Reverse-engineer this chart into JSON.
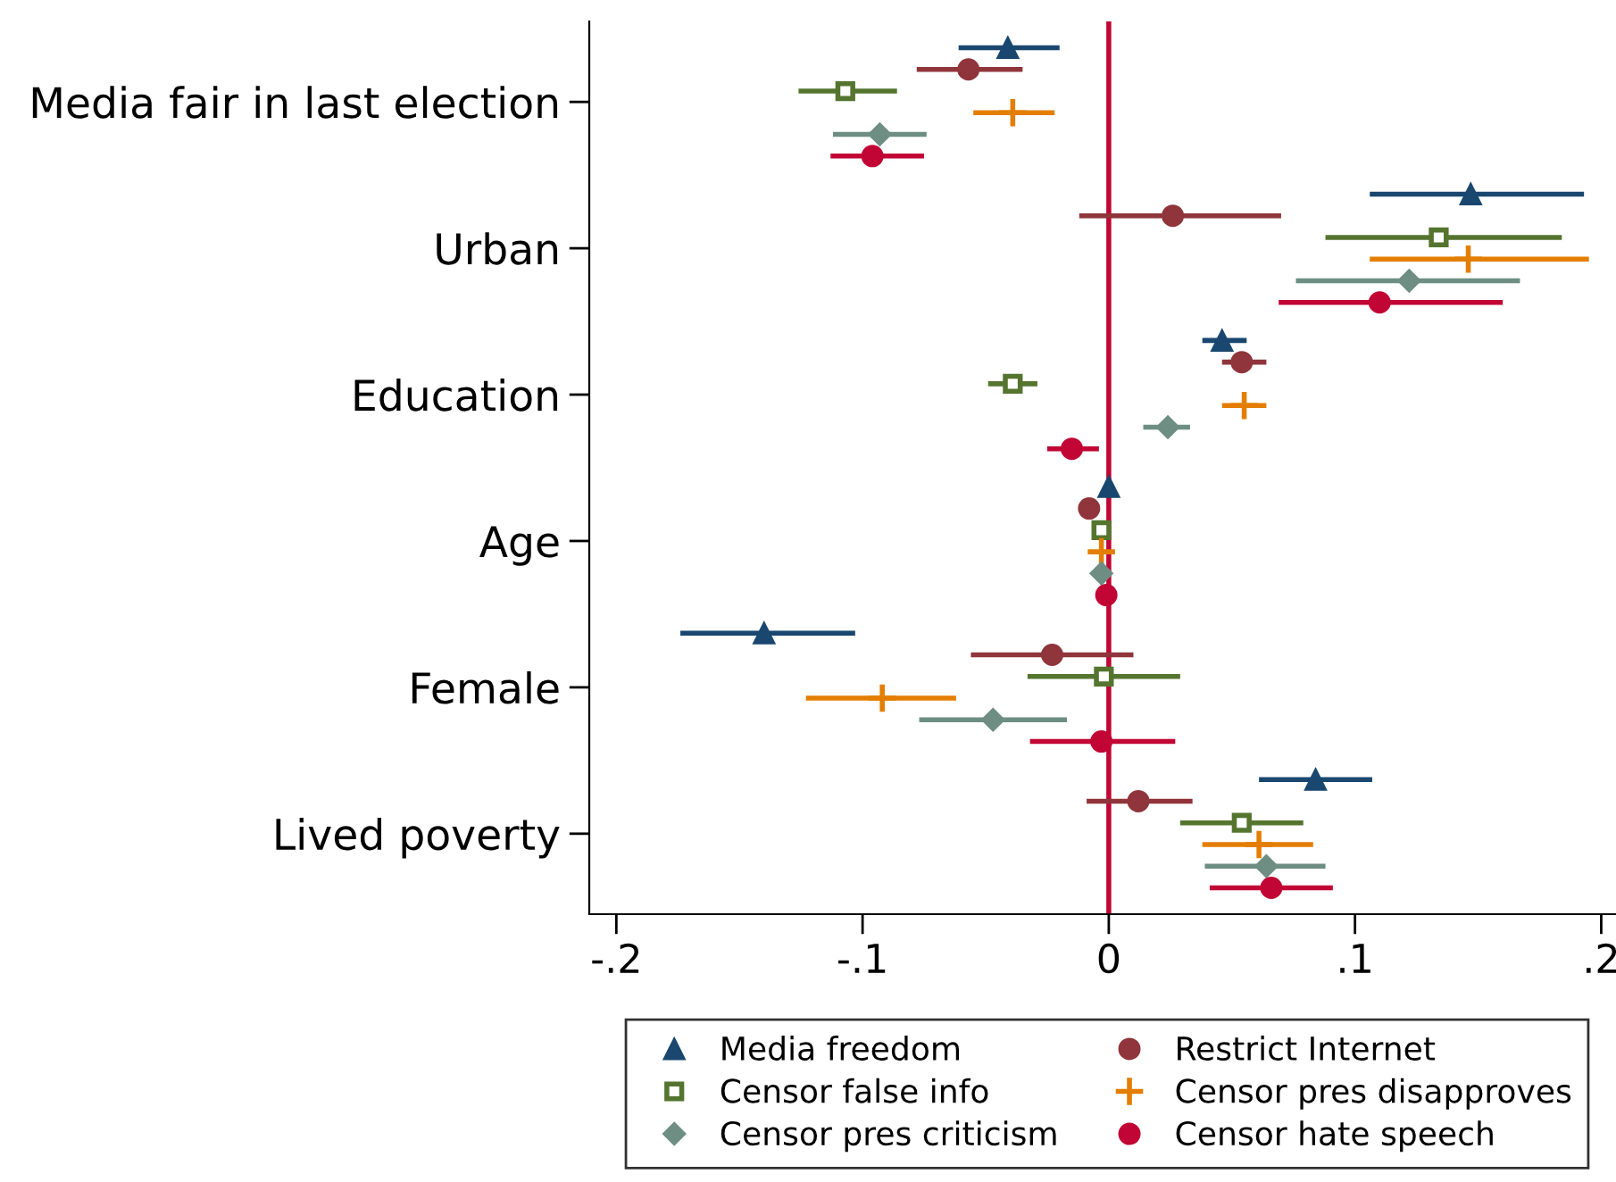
{
  "chart_data": {
    "type": "scatter",
    "orientation": "horizontal",
    "categories": [
      "Media fair in last election",
      "Urban",
      "Education",
      "Age",
      "Female",
      "Lived poverty"
    ],
    "xlim": [
      -0.211,
      0.206
    ],
    "xticks": [
      {
        "value": -0.2,
        "label": "-.2"
      },
      {
        "value": -0.1,
        "label": "-.1"
      },
      0,
      {
        "value": 0.1,
        "label": ".1"
      },
      {
        "value": 0.2,
        "label": ".2"
      }
    ],
    "grid": false,
    "legend": "bottom",
    "ref_lines": [
      {
        "axis": "x",
        "value": 0,
        "color": "#c10534",
        "line_style": "solid"
      }
    ],
    "series": [
      {
        "name": "Media freedom",
        "color": "#1a476f",
        "marker": "triangle",
        "values": [
          -0.041,
          0.147,
          0.046,
          0.0,
          -0.14,
          0.084
        ],
        "errors": [
          [
            -0.061,
            -0.02
          ],
          [
            0.106,
            0.193
          ],
          [
            0.038,
            0.056
          ],
          null,
          [
            -0.174,
            -0.103
          ],
          [
            0.061,
            0.107
          ]
        ]
      },
      {
        "name": "Restrict Internet",
        "color": "#90353b",
        "marker": "circle",
        "values": [
          -0.057,
          0.026,
          0.054,
          -0.008,
          -0.023,
          0.012
        ],
        "errors": [
          [
            -0.078,
            -0.035
          ],
          [
            -0.012,
            0.07
          ],
          [
            0.046,
            0.064
          ],
          null,
          [
            -0.056,
            0.01
          ],
          [
            -0.009,
            0.034
          ]
        ]
      },
      {
        "name": "Censor false info",
        "color": "#55752f",
        "marker": "square",
        "values": [
          -0.107,
          0.134,
          -0.039,
          -0.003,
          -0.002,
          0.054
        ],
        "errors": [
          [
            -0.126,
            -0.086
          ],
          [
            0.088,
            0.184
          ],
          [
            -0.049,
            -0.029
          ],
          null,
          [
            -0.033,
            0.029
          ],
          [
            0.029,
            0.079
          ]
        ]
      },
      {
        "name": "Censor pres disapproves",
        "color": "#e37e00",
        "marker": "cross",
        "values": [
          -0.039,
          0.146,
          0.055,
          -0.003,
          -0.092,
          0.061
        ],
        "errors": [
          [
            -0.055,
            -0.022
          ],
          [
            0.106,
            0.195
          ],
          [
            0.046,
            0.064
          ],
          null,
          [
            -0.123,
            -0.062
          ],
          [
            0.038,
            0.083
          ]
        ]
      },
      {
        "name": "Censor pres criticism",
        "color": "#6e8e84",
        "marker": "diamond",
        "values": [
          -0.093,
          0.122,
          0.024,
          -0.003,
          -0.047,
          0.064
        ],
        "errors": [
          [
            -0.112,
            -0.074
          ],
          [
            0.076,
            0.167
          ],
          [
            0.014,
            0.033
          ],
          null,
          [
            -0.077,
            -0.017
          ],
          [
            0.039,
            0.088
          ]
        ]
      },
      {
        "name": "Censor hate speech",
        "color": "#c10534",
        "marker": "circle",
        "values": [
          -0.096,
          0.11,
          -0.015,
          -0.001,
          -0.003,
          0.066
        ],
        "errors": [
          [
            -0.113,
            -0.075
          ],
          [
            0.069,
            0.16
          ],
          [
            -0.025,
            -0.004
          ],
          null,
          [
            -0.032,
            0.027
          ],
          [
            0.041,
            0.091
          ]
        ]
      }
    ]
  }
}
